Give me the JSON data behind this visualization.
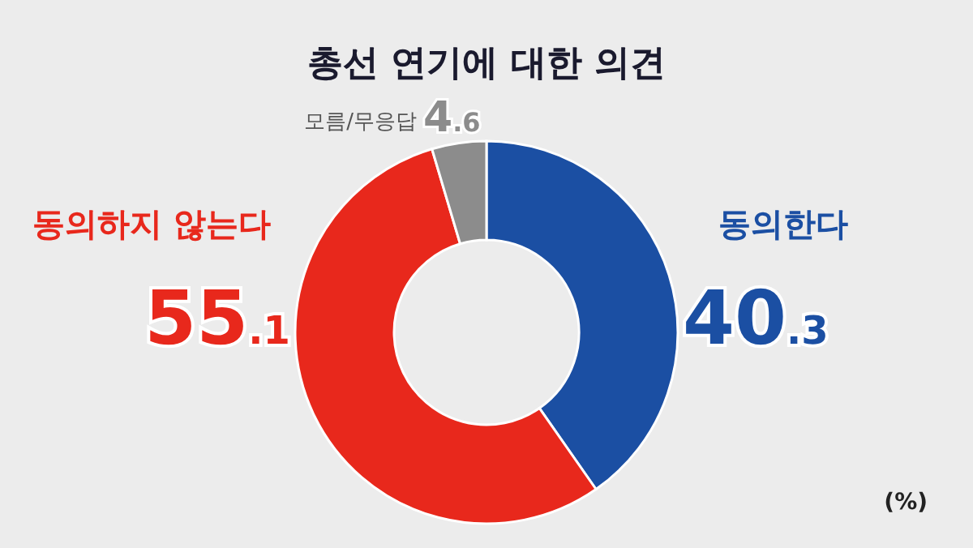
{
  "chart_data": {
    "type": "donut",
    "title": "총선 연기에 대한 의견",
    "categories": [
      "동의한다",
      "동의하지 않는다",
      "모름/무응답"
    ],
    "values": [
      40.3,
      55.1,
      4.6
    ],
    "colors": [
      "#1b4fa3",
      "#e8281c",
      "#8c8c8c"
    ],
    "data_labels": true,
    "annotations": [
      "(%)"
    ]
  }
}
